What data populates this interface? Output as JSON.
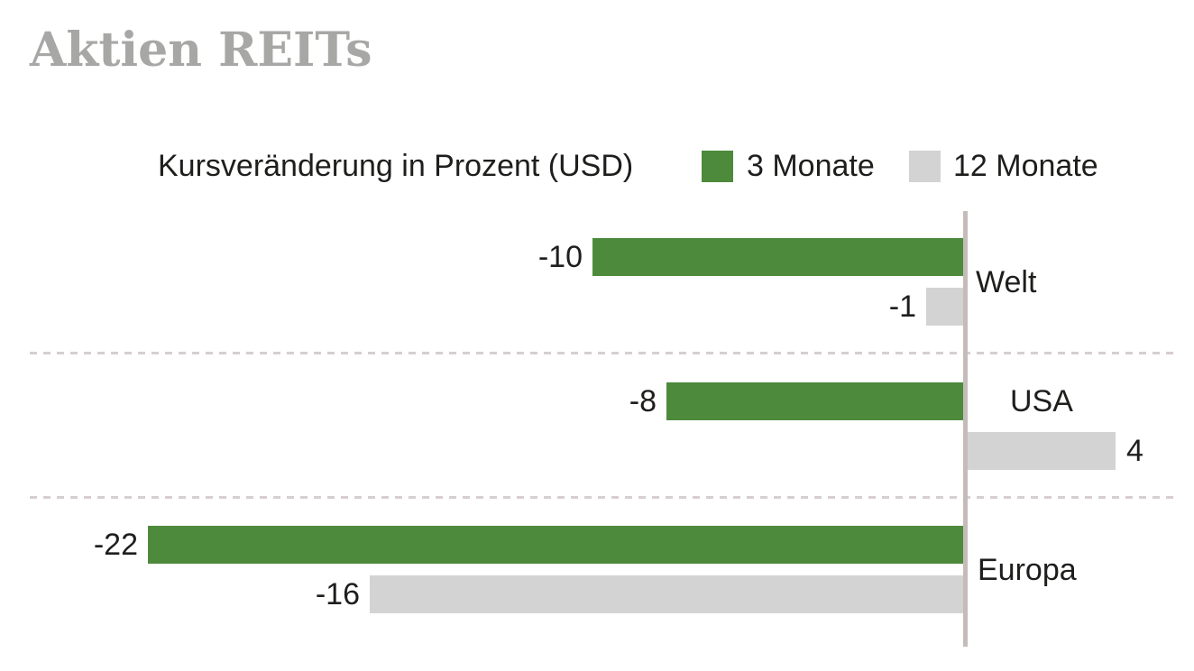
{
  "title": "Aktien REITs",
  "subtitle": "Kursveränderung in Prozent (USD)",
  "legend": {
    "items": [
      {
        "label": "3 Monate",
        "color": "#4d8a3c"
      },
      {
        "label": "12 Monate",
        "color": "#d3d3d3"
      }
    ]
  },
  "colors": {
    "series_green": "#4d8a3c",
    "series_gray": "#d3d3d3",
    "axis_line": "#c4bcb9",
    "separator": "#d6ced2",
    "title_text": "#a7a7a5",
    "body_text": "#1e1e1c"
  },
  "chart_data": {
    "type": "bar",
    "orientation": "horizontal",
    "title": "Aktien REITs",
    "subtitle": "Kursveränderung in Prozent (USD)",
    "categories": [
      "Welt",
      "USA",
      "Europa"
    ],
    "series": [
      {
        "name": "3 Monate",
        "color": "#4d8a3c",
        "values": [
          -10,
          -8,
          -22
        ]
      },
      {
        "name": "12 Monate",
        "color": "#d3d3d3",
        "values": [
          -1,
          4,
          -16
        ]
      }
    ],
    "value_labels": [
      [
        "-10",
        "-8",
        "-22"
      ],
      [
        "-1",
        "4",
        "-16"
      ]
    ],
    "xlim": [
      -22,
      4
    ],
    "baseline": 0,
    "unit": "percent (USD)",
    "legend_position": "top-right",
    "grid": "dashed horizontal category separators, vertical zero-axis line"
  }
}
